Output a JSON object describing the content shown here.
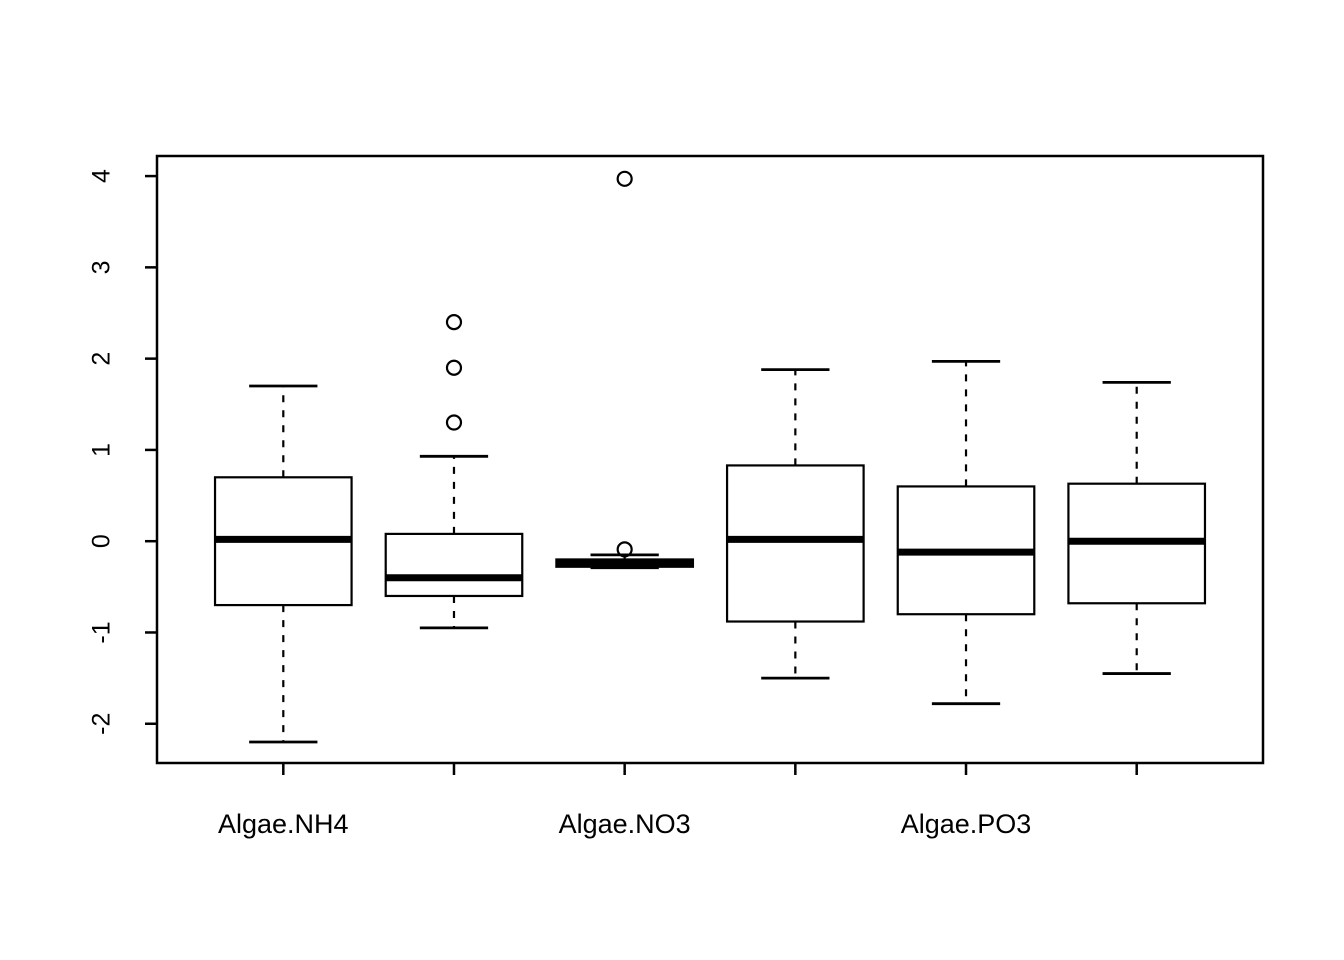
{
  "figure": {
    "background": "#ffffff",
    "foreground": "#000000"
  },
  "chart_data": {
    "type": "boxplot",
    "title": "",
    "xlabel": "",
    "ylabel": "",
    "grid": false,
    "group_labels": [
      "Algae.NH4",
      "Algae.NO3",
      "Algae.PO3"
    ],
    "group_label_at_position": [
      1,
      3,
      5
    ],
    "x_tick_positions": [
      1,
      2,
      3,
      4,
      5,
      6
    ],
    "yticks": [
      -2,
      -1,
      0,
      1,
      2,
      3,
      4
    ],
    "ylim": [
      -2.43,
      4.22
    ],
    "xlim": [
      0.26,
      6.74
    ],
    "box_width": 0.8,
    "boxes": [
      {
        "position": 1,
        "group": "Algae.NH4",
        "whisker_low": -2.2,
        "q1": -0.7,
        "median": 0.02,
        "q3": 0.7,
        "whisker_high": 1.7,
        "outliers": []
      },
      {
        "position": 2,
        "group": "Algae.NH4",
        "whisker_low": -0.95,
        "q1": -0.6,
        "median": -0.4,
        "q3": 0.08,
        "whisker_high": 0.93,
        "outliers": [
          1.3,
          1.9,
          2.4
        ]
      },
      {
        "position": 3,
        "group": "Algae.NO3",
        "whisker_low": -0.29,
        "q1": -0.28,
        "median": -0.24,
        "q3": -0.2,
        "whisker_high": -0.15,
        "outliers": [
          -0.09,
          3.97
        ]
      },
      {
        "position": 4,
        "group": "Algae.NO3",
        "whisker_low": -1.5,
        "q1": -0.88,
        "median": 0.02,
        "q3": 0.83,
        "whisker_high": 1.88,
        "outliers": []
      },
      {
        "position": 5,
        "group": "Algae.PO3",
        "whisker_low": -1.78,
        "q1": -0.8,
        "median": -0.12,
        "q3": 0.6,
        "whisker_high": 1.97,
        "outliers": []
      },
      {
        "position": 6,
        "group": "Algae.PO3",
        "whisker_low": -1.45,
        "q1": -0.68,
        "median": 0.0,
        "q3": 0.63,
        "whisker_high": 1.74,
        "outliers": []
      }
    ]
  }
}
